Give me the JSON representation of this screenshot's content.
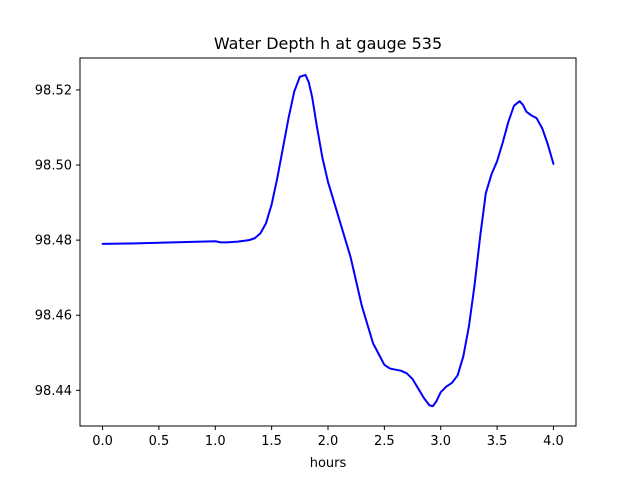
{
  "chart_data": {
    "type": "line",
    "title": "Water Depth h at gauge 535",
    "xlabel": "hours",
    "ylabel": "",
    "xlim": [
      -0.2,
      4.2
    ],
    "ylim": [
      98.4305,
      98.5285
    ],
    "x_ticks": [
      0.0,
      0.5,
      1.0,
      1.5,
      2.0,
      2.5,
      3.0,
      3.5,
      4.0
    ],
    "x_tick_labels": [
      "0.0",
      "0.5",
      "1.0",
      "1.5",
      "2.0",
      "2.5",
      "3.0",
      "3.5",
      "4.0"
    ],
    "y_ticks": [
      98.44,
      98.46,
      98.48,
      98.5,
      98.52
    ],
    "y_tick_labels": [
      "98.44",
      "98.46",
      "98.48",
      "98.50",
      "98.52"
    ],
    "grid": false,
    "series": [
      {
        "color": "#0000ff",
        "x": [
          0.0,
          0.25,
          0.5,
          0.75,
          1.0,
          1.05,
          1.1,
          1.2,
          1.3,
          1.35,
          1.4,
          1.45,
          1.5,
          1.55,
          1.6,
          1.65,
          1.7,
          1.75,
          1.8,
          1.83,
          1.86,
          1.9,
          1.95,
          2.0,
          2.05,
          2.1,
          2.2,
          2.3,
          2.4,
          2.5,
          2.55,
          2.6,
          2.65,
          2.7,
          2.75,
          2.8,
          2.85,
          2.9,
          2.93,
          2.96,
          3.0,
          3.05,
          3.1,
          3.15,
          3.2,
          3.25,
          3.3,
          3.35,
          3.4,
          3.45,
          3.5,
          3.55,
          3.6,
          3.65,
          3.7,
          3.73,
          3.76,
          3.8,
          3.85,
          3.9,
          3.95,
          4.0
        ],
        "y": [
          98.479,
          98.4791,
          98.4793,
          98.4795,
          98.4797,
          98.4794,
          98.4794,
          98.4796,
          98.48,
          98.4805,
          98.4818,
          98.4845,
          98.4895,
          98.4965,
          98.5045,
          98.5125,
          98.5195,
          98.5235,
          98.524,
          98.522,
          98.518,
          98.5105,
          98.502,
          98.4955,
          98.4905,
          98.4855,
          98.4755,
          98.4625,
          98.4525,
          98.4468,
          98.4458,
          98.4455,
          98.4452,
          98.4445,
          98.443,
          98.4405,
          98.438,
          98.436,
          98.4358,
          98.437,
          98.4395,
          98.441,
          98.442,
          98.444,
          98.449,
          98.457,
          98.468,
          98.481,
          98.4925,
          98.4975,
          98.501,
          98.506,
          98.5115,
          98.5158,
          98.517,
          98.516,
          98.5142,
          98.5133,
          98.5125,
          98.5098,
          98.5055,
          98.5003
        ]
      }
    ]
  }
}
